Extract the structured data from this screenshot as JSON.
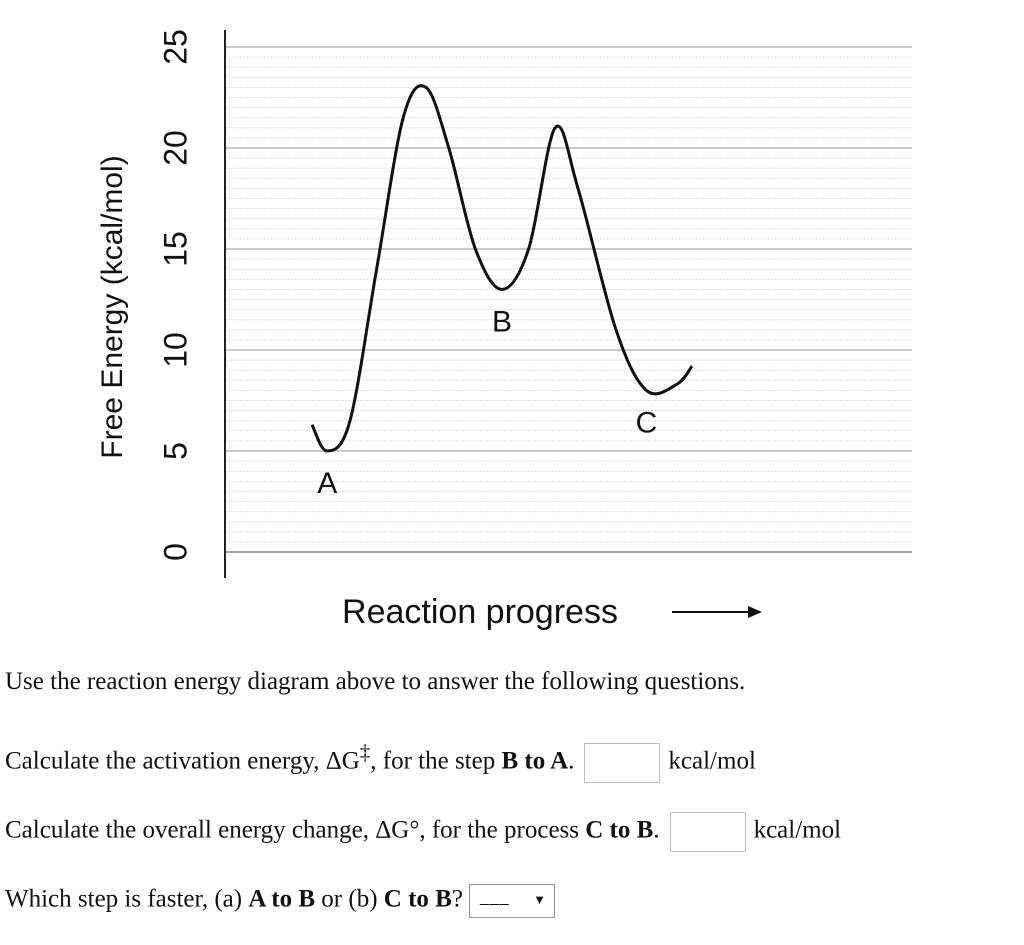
{
  "chart_data": {
    "type": "line",
    "xlabel": "Reaction progress",
    "ylabel": "Free Energy (kcal/mol)",
    "ylim": [
      0,
      25
    ],
    "yticks": [
      0,
      5,
      10,
      15,
      20,
      25
    ],
    "grid": true,
    "point_labels": [
      {
        "label": "A",
        "y": 5
      },
      {
        "label": "B",
        "y": 13
      },
      {
        "label": "C",
        "y": 8
      }
    ],
    "curve": {
      "points": [
        {
          "x": 0.0,
          "y": 6.3
        },
        {
          "x": 0.04,
          "y": 5.0
        },
        {
          "x": 0.1,
          "y": 6.5
        },
        {
          "x": 0.17,
          "y": 14.0
        },
        {
          "x": 0.24,
          "y": 21.5
        },
        {
          "x": 0.3,
          "y": 23.0
        },
        {
          "x": 0.36,
          "y": 20.0
        },
        {
          "x": 0.43,
          "y": 15.0
        },
        {
          "x": 0.5,
          "y": 13.0
        },
        {
          "x": 0.57,
          "y": 15.0
        },
        {
          "x": 0.64,
          "y": 21.0
        },
        {
          "x": 0.7,
          "y": 18.0
        },
        {
          "x": 0.8,
          "y": 11.0
        },
        {
          "x": 0.88,
          "y": 8.0
        },
        {
          "x": 0.96,
          "y": 8.3
        },
        {
          "x": 1.0,
          "y": 9.2
        }
      ]
    }
  },
  "questions": {
    "intro": "Use the reaction energy diagram above to answer the following questions.",
    "q1": {
      "pre": "Calculate the activation energy, ΔG",
      "sup": "‡",
      "mid": ", for the step ",
      "bold": "B to A",
      "end": ".",
      "value": "",
      "unit": "kcal/mol"
    },
    "q2": {
      "pre": "Calculate the overall energy change, ΔG°, for the process ",
      "bold": "C to B",
      "end": ".",
      "value": "",
      "unit": "kcal/mol"
    },
    "q3": {
      "pre": "Which step is faster, (a) ",
      "bold1": "A to B",
      "mid": " or (b) ",
      "bold2": "C to B",
      "end": "?",
      "selected": "___"
    }
  }
}
